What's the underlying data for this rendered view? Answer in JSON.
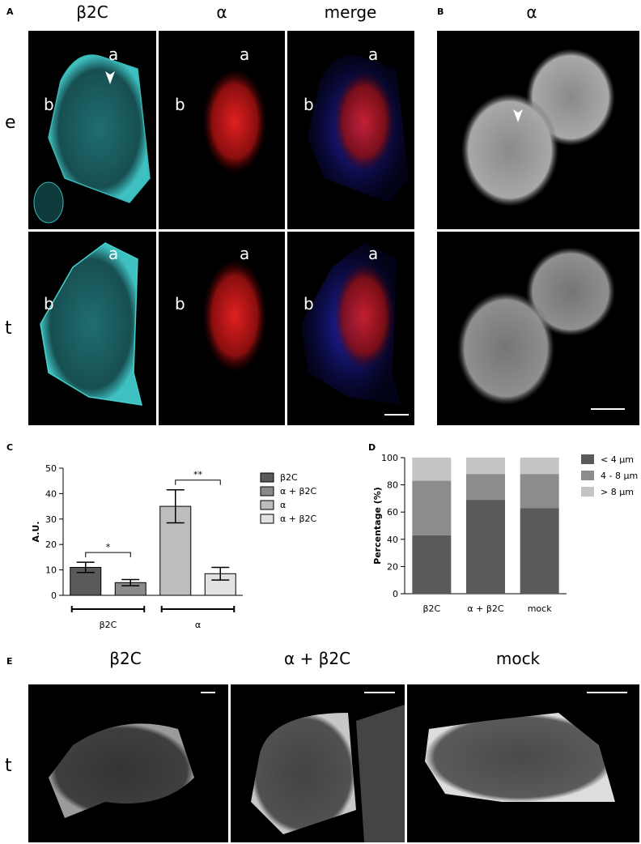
{
  "figure": {
    "panel_labels": [
      "A",
      "B",
      "C",
      "D",
      "E"
    ],
    "a_headers": [
      "β2C",
      "α",
      "merge"
    ],
    "b_header": "α",
    "row_labels": [
      "e",
      "t"
    ],
    "cell_labels": [
      "a",
      "b"
    ],
    "e_headers": [
      "β2C",
      "α + β2C",
      "mock"
    ],
    "e_row_label": "t"
  },
  "chart_data": [
    {
      "type": "bar",
      "ylabel": "A.U.",
      "categories": [
        "β2C",
        "α + β2C",
        "α",
        "α + β2C"
      ],
      "values": [
        11,
        5,
        35,
        8.5
      ],
      "errors": [
        2,
        1.2,
        6.5,
        2.5
      ],
      "colors": [
        "#5a5a5a",
        "#8a8a8a",
        "#bdbdbd",
        "#e2e2e2"
      ],
      "groups": [
        "β2C",
        "α"
      ],
      "significance": [
        "*",
        "**"
      ],
      "ylim": [
        0,
        50
      ],
      "yticks": [
        0,
        10,
        20,
        30,
        40,
        50
      ],
      "legend": "right"
    },
    {
      "type": "stacked_bar",
      "ylabel": "Percentage (%)",
      "categories": [
        "β2C",
        "α + β2C",
        "mock"
      ],
      "series": [
        {
          "name": "< 4 µm",
          "color": "#5a5a5a",
          "values": [
            43,
            69,
            63
          ]
        },
        {
          "name": "4 - 8 µm",
          "color": "#8c8c8c",
          "values": [
            40,
            19,
            25
          ]
        },
        {
          "name": "> 8 µm",
          "color": "#c4c4c4",
          "values": [
            17,
            12,
            12
          ]
        }
      ],
      "ylim": [
        0,
        100
      ],
      "yticks": [
        0,
        20,
        40,
        60,
        80,
        100
      ],
      "legend": "right"
    }
  ]
}
